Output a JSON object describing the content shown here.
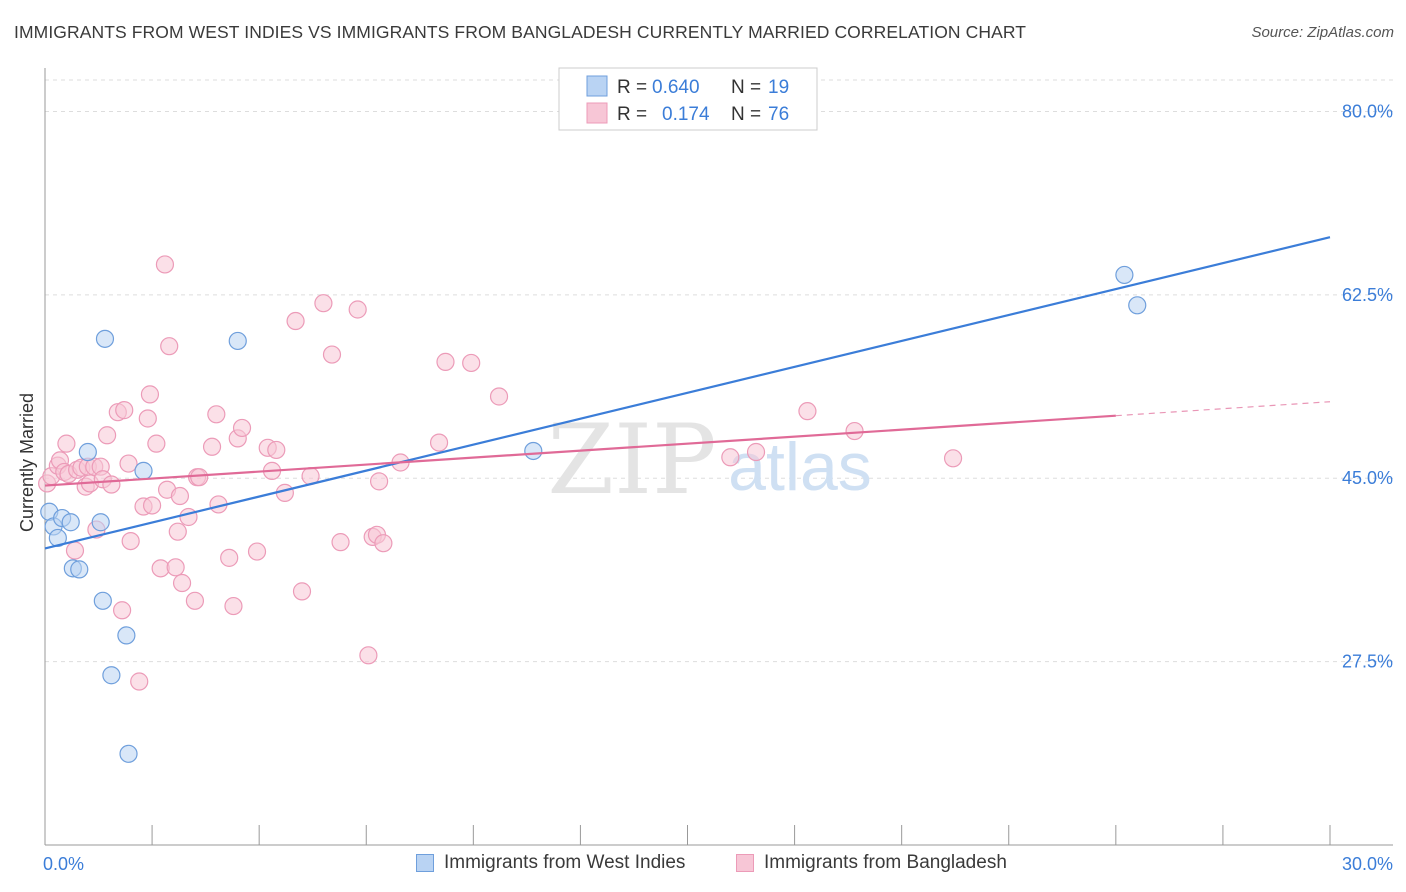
{
  "title": "IMMIGRANTS FROM WEST INDIES VS IMMIGRANTS FROM BANGLADESH CURRENTLY MARRIED CORRELATION CHART",
  "source": "Source: ZipAtlas.com",
  "watermark": {
    "zip": "ZIP",
    "atlas": "atlas"
  },
  "colors": {
    "blue": "#3b7dd8",
    "blue_fill": "#b9d3f3",
    "blue_stroke": "#6f9fdc",
    "pink": "#e06a97",
    "pink_fill": "#f7c6d6",
    "pink_stroke": "#ec9bb8",
    "axis_text_blue": "#3b7dd8",
    "grid": "#dddddd"
  },
  "legend": {
    "rows": [
      {
        "r_label": "R = ",
        "r_value": "0.640",
        "n_label": "N = ",
        "n_value": "19"
      },
      {
        "r_label": "R = ",
        "r_value": "0.174",
        "n_label": "N = ",
        "n_value": "76"
      }
    ]
  },
  "bottom_legend": {
    "series1": "Immigrants from West Indies",
    "series2": "Immigrants from Bangladesh"
  },
  "chart_data": {
    "type": "scatter",
    "title": "IMMIGRANTS FROM WEST INDIES VS IMMIGRANTS FROM BANGLADESH CURRENTLY MARRIED CORRELATION CHART",
    "xlabel": "",
    "ylabel": "Currently Married",
    "xlim": [
      0,
      30
    ],
    "ylim": [
      10,
      83
    ],
    "x_tick_labels": [
      {
        "value": 0,
        "label": "0.0%"
      },
      {
        "value": 30,
        "label": "30.0%"
      }
    ],
    "y_ticks": [
      {
        "value": 27.5,
        "label": "27.5%"
      },
      {
        "value": 45.0,
        "label": "45.0%"
      },
      {
        "value": 62.5,
        "label": "62.5%"
      },
      {
        "value": 80.0,
        "label": "80.0%"
      }
    ],
    "series": [
      {
        "name": "Immigrants from West Indies",
        "color": "blue",
        "r": 0.64,
        "n": 19,
        "trend": {
          "x0": 0.0,
          "y0": 38.3,
          "x1": 30.0,
          "y1": 68.0,
          "dashed_from": null
        },
        "points": [
          [
            0.1,
            41.8
          ],
          [
            0.2,
            40.4
          ],
          [
            0.3,
            39.3
          ],
          [
            0.4,
            41.2
          ],
          [
            0.6,
            40.8
          ],
          [
            0.65,
            36.4
          ],
          [
            0.8,
            36.3
          ],
          [
            1.0,
            47.5
          ],
          [
            1.3,
            40.8
          ],
          [
            1.35,
            33.3
          ],
          [
            1.4,
            58.3
          ],
          [
            1.55,
            26.2
          ],
          [
            1.9,
            30.0
          ],
          [
            1.95,
            18.7
          ],
          [
            2.3,
            45.7
          ],
          [
            4.5,
            58.1
          ],
          [
            11.4,
            47.6
          ],
          [
            25.2,
            64.4
          ],
          [
            25.5,
            61.5
          ]
        ]
      },
      {
        "name": "Immigrants from Bangladesh",
        "color": "pink",
        "r": 0.174,
        "n": 76,
        "trend": {
          "x0": 0.0,
          "y0": 44.3,
          "x1": 30.0,
          "y1": 52.3,
          "dashed_from": 25.0
        },
        "points": [
          [
            0.05,
            44.5
          ],
          [
            0.15,
            45.2
          ],
          [
            0.3,
            46.2
          ],
          [
            0.35,
            46.7
          ],
          [
            0.45,
            45.6
          ],
          [
            0.5,
            48.3
          ],
          [
            0.55,
            45.4
          ],
          [
            0.7,
            38.1
          ],
          [
            0.75,
            45.8
          ],
          [
            0.85,
            46.0
          ],
          [
            0.95,
            44.2
          ],
          [
            1.0,
            46.1
          ],
          [
            1.05,
            44.5
          ],
          [
            1.15,
            46.1
          ],
          [
            1.2,
            40.1
          ],
          [
            1.3,
            46.1
          ],
          [
            1.35,
            44.9
          ],
          [
            1.45,
            49.1
          ],
          [
            1.55,
            44.4
          ],
          [
            1.7,
            51.3
          ],
          [
            1.8,
            32.4
          ],
          [
            1.85,
            51.5
          ],
          [
            1.95,
            46.4
          ],
          [
            2.0,
            39.0
          ],
          [
            2.2,
            25.6
          ],
          [
            2.3,
            42.3
          ],
          [
            2.4,
            50.7
          ],
          [
            2.45,
            53.0
          ],
          [
            2.5,
            42.4
          ],
          [
            2.6,
            48.3
          ],
          [
            2.7,
            36.4
          ],
          [
            2.8,
            65.4
          ],
          [
            2.85,
            43.9
          ],
          [
            2.9,
            57.6
          ],
          [
            3.05,
            36.5
          ],
          [
            3.1,
            39.9
          ],
          [
            3.15,
            43.3
          ],
          [
            3.2,
            35.0
          ],
          [
            3.35,
            41.3
          ],
          [
            3.5,
            33.3
          ],
          [
            3.55,
            45.1
          ],
          [
            3.6,
            45.1
          ],
          [
            3.9,
            48.0
          ],
          [
            4.0,
            51.1
          ],
          [
            4.05,
            42.5
          ],
          [
            4.3,
            37.4
          ],
          [
            4.4,
            32.8
          ],
          [
            4.5,
            48.8
          ],
          [
            4.6,
            49.8
          ],
          [
            4.95,
            38.0
          ],
          [
            5.2,
            47.9
          ],
          [
            5.3,
            45.7
          ],
          [
            5.4,
            47.7
          ],
          [
            5.6,
            43.6
          ],
          [
            5.85,
            60.0
          ],
          [
            6.0,
            34.2
          ],
          [
            6.2,
            45.2
          ],
          [
            6.5,
            61.7
          ],
          [
            6.7,
            56.8
          ],
          [
            6.9,
            38.9
          ],
          [
            7.3,
            61.1
          ],
          [
            7.55,
            28.1
          ],
          [
            7.65,
            39.4
          ],
          [
            7.75,
            39.6
          ],
          [
            7.8,
            44.7
          ],
          [
            7.9,
            38.8
          ],
          [
            8.3,
            46.5
          ],
          [
            9.2,
            48.4
          ],
          [
            9.35,
            56.1
          ],
          [
            9.95,
            56.0
          ],
          [
            10.6,
            52.8
          ],
          [
            16.0,
            47.0
          ],
          [
            16.6,
            47.5
          ],
          [
            17.8,
            51.4
          ],
          [
            18.9,
            49.5
          ],
          [
            21.2,
            46.9
          ]
        ]
      }
    ]
  }
}
